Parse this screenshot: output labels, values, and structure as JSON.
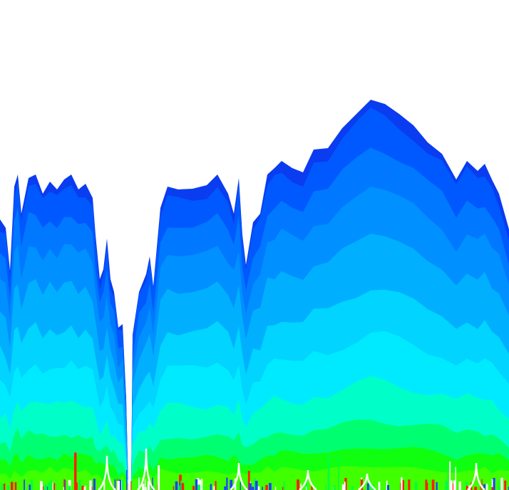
{
  "visualization": {
    "background": "#ffffff",
    "layer_colors": [
      "#0a3cf0",
      "#0058ff",
      "#0078ff",
      "#0090ff",
      "#00b0ff",
      "#00d4ff",
      "#00eaff",
      "#00ffc8",
      "#00ff70",
      "#10ff10",
      "#40ff00"
    ],
    "base_noise_colors": [
      "#ff2000",
      "#ffffff",
      "#2040ff",
      "#00ff40"
    ]
  }
}
